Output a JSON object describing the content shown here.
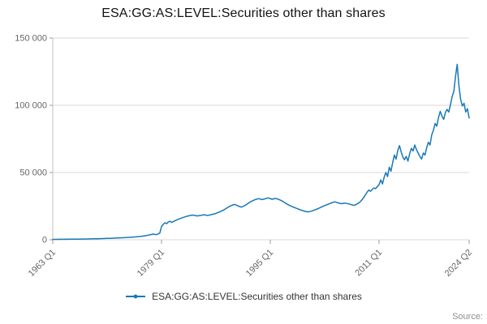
{
  "header": {
    "title": "ESA:GG:AS:LEVEL:Securities other than shares"
  },
  "legend": {
    "label": "ESA:GG:AS:LEVEL:Securities other than shares"
  },
  "footer": {
    "source_label": "Source:"
  },
  "chart_data": {
    "type": "line",
    "title": "ESA:GG:AS:LEVEL:Securities other than shares",
    "xlabel": "",
    "ylabel": "",
    "x_unit": "quarter",
    "x_start": "1963 Q1",
    "x_end": "2024 Q2",
    "ylim": [
      0,
      150000
    ],
    "grid": true,
    "legend_position": "bottom",
    "line_color": "#1878b8",
    "yticks": [
      {
        "value": 0,
        "label": "0"
      },
      {
        "value": 50000,
        "label": "50 000"
      },
      {
        "value": 100000,
        "label": "100 000"
      },
      {
        "value": 150000,
        "label": "150 000"
      }
    ],
    "xticks": [
      {
        "index": 0,
        "label": "1963 Q1"
      },
      {
        "index": 64,
        "label": "1979 Q1"
      },
      {
        "index": 128,
        "label": "1995 Q1"
      },
      {
        "index": 192,
        "label": "2011 Q1"
      },
      {
        "index": 245,
        "label": "2024 Q2"
      }
    ],
    "series": [
      {
        "name": "ESA:GG:AS:LEVEL:Securities other than shares",
        "values": [
          300,
          320,
          310,
          330,
          350,
          340,
          360,
          380,
          400,
          390,
          420,
          440,
          460,
          450,
          480,
          500,
          520,
          540,
          530,
          560,
          590,
          620,
          640,
          660,
          700,
          730,
          760,
          800,
          840,
          880,
          920,
          960,
          1000,
          1050,
          1100,
          1150,
          1200,
          1260,
          1320,
          1380,
          1440,
          1500,
          1570,
          1640,
          1720,
          1800,
          1880,
          1960,
          2050,
          2150,
          2280,
          2400,
          2550,
          2700,
          2900,
          3100,
          3350,
          3600,
          3900,
          4200,
          4000,
          3850,
          4300,
          5000,
          9800,
          11500,
          12600,
          12000,
          13200,
          13800,
          12900,
          13600,
          14200,
          14800,
          15300,
          15800,
          16200,
          16700,
          17100,
          17500,
          17800,
          18100,
          18400,
          18200,
          18000,
          17700,
          17900,
          18100,
          18400,
          18600,
          18300,
          18100,
          18300,
          18600,
          18900,
          19200,
          19600,
          20100,
          20600,
          21200,
          21800,
          22500,
          23300,
          24100,
          24800,
          25400,
          25900,
          26300,
          25800,
          25200,
          24700,
          24300,
          24800,
          25400,
          26200,
          27100,
          28000,
          28700,
          29300,
          29800,
          30200,
          30600,
          30300,
          29900,
          30100,
          30500,
          30900,
          31100,
          30600,
          30100,
          30400,
          30700,
          30400,
          30000,
          29400,
          28800,
          28000,
          27200,
          26400,
          25800,
          25200,
          24600,
          24100,
          23600,
          23100,
          22600,
          22100,
          21700,
          21300,
          21000,
          20700,
          20900,
          21200,
          21600,
          22100,
          22600,
          23100,
          23700,
          24300,
          24900,
          25400,
          25900,
          26400,
          26900,
          27400,
          27900,
          28200,
          27800,
          27400,
          27100,
          26800,
          27100,
          27300,
          27000,
          26700,
          26400,
          26000,
          25600,
          25900,
          26600,
          27300,
          28400,
          29800,
          31500,
          33500,
          35500,
          37000,
          36000,
          37500,
          38500,
          38000,
          39500,
          41000,
          44500,
          41500,
          46500,
          50000,
          47000,
          54000,
          51000,
          57500,
          63000,
          60000,
          66500,
          70000,
          65500,
          61500,
          59500,
          62000,
          58500,
          64000,
          68000,
          66000,
          70500,
          67000,
          64500,
          62000,
          60000,
          64500,
          63000,
          68500,
          72500,
          70500,
          78000,
          81500,
          86500,
          84500,
          91000,
          95500,
          92000,
          89500,
          94500,
          97000,
          95000,
          100500,
          106500,
          110500,
          121500,
          130500,
          114500,
          104500,
          99500,
          101500,
          95000,
          97500,
          90500
        ]
      }
    ]
  }
}
